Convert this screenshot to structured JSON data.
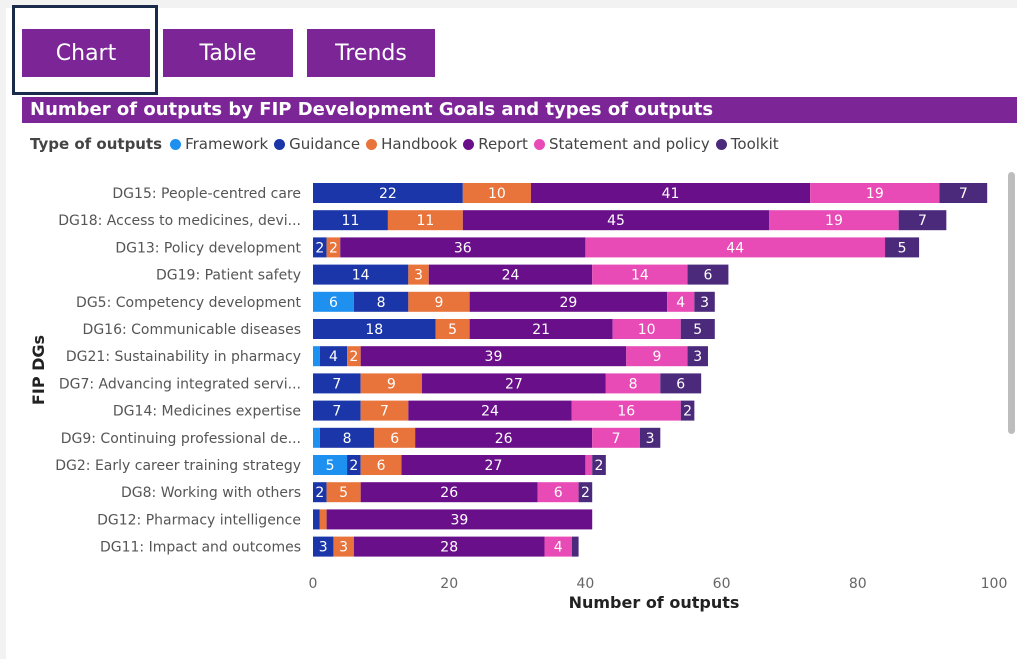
{
  "tabs": [
    {
      "label": "Chart"
    },
    {
      "label": "Table"
    },
    {
      "label": "Trends"
    }
  ],
  "chart_data": {
    "type": "bar",
    "orientation": "horizontal",
    "stacked": true,
    "title": "Number of outputs by FIP Development Goals and types of outputs",
    "xlabel": "Number of outputs",
    "ylabel": "FIP DGs",
    "xlim": [
      0,
      100
    ],
    "xticks": [
      0,
      20,
      40,
      60,
      80,
      100
    ],
    "legend_title": "Type of outputs",
    "legend_position": "top-left",
    "categories": [
      "DG15: People-centred care",
      "DG18: Access to medicines, devi...",
      "DG13: Policy development",
      "DG19: Patient safety",
      "DG5: Competency development",
      "DG16: Communicable diseases",
      "DG21: Sustainability in pharmacy",
      "DG7: Advancing integrated servi...",
      "DG14: Medicines expertise",
      "DG9: Continuing professional de...",
      "DG2: Early career training strategy",
      "DG8: Working with others",
      "DG12: Pharmacy intelligence",
      "DG11: Impact and outcomes"
    ],
    "series": [
      {
        "name": "Framework",
        "color": "#1e90f0",
        "values": [
          0,
          0,
          0,
          0,
          6,
          0,
          1,
          0,
          0,
          1,
          5,
          0,
          0,
          0
        ]
      },
      {
        "name": "Guidance",
        "color": "#1a36a8",
        "values": [
          22,
          11,
          2,
          14,
          8,
          18,
          4,
          7,
          7,
          8,
          2,
          2,
          1,
          3
        ]
      },
      {
        "name": "Handbook",
        "color": "#e8743b",
        "values": [
          10,
          11,
          2,
          3,
          9,
          5,
          2,
          9,
          7,
          6,
          6,
          5,
          1,
          3
        ]
      },
      {
        "name": "Report",
        "color": "#6a0f8a",
        "values": [
          41,
          45,
          36,
          24,
          29,
          21,
          39,
          27,
          24,
          26,
          27,
          26,
          39,
          28
        ]
      },
      {
        "name": "Statement and policy",
        "color": "#e84bb5",
        "values": [
          19,
          19,
          44,
          14,
          4,
          10,
          9,
          8,
          16,
          7,
          1,
          6,
          0,
          4
        ]
      },
      {
        "name": "Toolkit",
        "color": "#4b2a7b",
        "values": [
          7,
          7,
          5,
          6,
          3,
          5,
          3,
          6,
          2,
          3,
          2,
          2,
          0,
          1
        ]
      }
    ]
  }
}
